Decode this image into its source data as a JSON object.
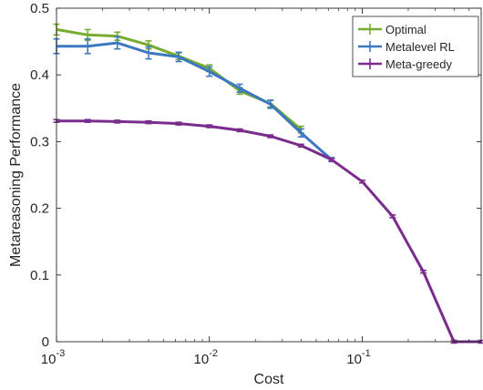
{
  "chart_data": {
    "type": "line",
    "xlabel": "Cost",
    "ylabel": "Metareasoning Performance",
    "xscale": "log",
    "xlim": [
      0.001,
      0.6
    ],
    "ylim": [
      0,
      0.5
    ],
    "x_ticks": [
      {
        "value": 0.001,
        "base": "10",
        "exp": "-3"
      },
      {
        "value": 0.01,
        "base": "10",
        "exp": "-2"
      },
      {
        "value": 0.1,
        "base": "10",
        "exp": "-1"
      }
    ],
    "y_ticks": [
      {
        "value": 0,
        "label": "0"
      },
      {
        "value": 0.1,
        "label": "0.1"
      },
      {
        "value": 0.2,
        "label": "0.2"
      },
      {
        "value": 0.3,
        "label": "0.3"
      },
      {
        "value": 0.4,
        "label": "0.4"
      },
      {
        "value": 0.5,
        "label": "0.5"
      }
    ],
    "legend_position": "top-right",
    "series": [
      {
        "name": "Optimal",
        "color": "#77ac30",
        "points": [
          {
            "x": 0.001,
            "y": 0.468,
            "err": 0.008
          },
          {
            "x": 0.0016,
            "y": 0.46,
            "err": 0.008
          },
          {
            "x": 0.0025,
            "y": 0.458,
            "err": 0.006
          },
          {
            "x": 0.004,
            "y": 0.445,
            "err": 0.006
          },
          {
            "x": 0.0063,
            "y": 0.428,
            "err": 0.005
          },
          {
            "x": 0.01,
            "y": 0.41,
            "err": 0.005
          },
          {
            "x": 0.0158,
            "y": 0.376,
            "err": 0.005
          },
          {
            "x": 0.0251,
            "y": 0.357,
            "err": 0.005
          },
          {
            "x": 0.0398,
            "y": 0.318,
            "err": 0.005
          }
        ]
      },
      {
        "name": "Metalevel RL",
        "color": "#3c78c0",
        "points": [
          {
            "x": 0.001,
            "y": 0.443,
            "err": 0.011
          },
          {
            "x": 0.0016,
            "y": 0.443,
            "err": 0.011
          },
          {
            "x": 0.0025,
            "y": 0.448,
            "err": 0.009
          },
          {
            "x": 0.004,
            "y": 0.433,
            "err": 0.009
          },
          {
            "x": 0.0063,
            "y": 0.427,
            "err": 0.007
          },
          {
            "x": 0.01,
            "y": 0.405,
            "err": 0.007
          },
          {
            "x": 0.0158,
            "y": 0.38,
            "err": 0.006
          },
          {
            "x": 0.0251,
            "y": 0.356,
            "err": 0.006
          },
          {
            "x": 0.0398,
            "y": 0.313,
            "err": 0.006
          },
          {
            "x": 0.0631,
            "y": 0.273,
            "err": 0.003
          }
        ]
      },
      {
        "name": "Meta-greedy",
        "color": "#7b2d8e",
        "points": [
          {
            "x": 0.001,
            "y": 0.331
          },
          {
            "x": 0.0016,
            "y": 0.331
          },
          {
            "x": 0.0025,
            "y": 0.33
          },
          {
            "x": 0.004,
            "y": 0.329
          },
          {
            "x": 0.0063,
            "y": 0.327
          },
          {
            "x": 0.01,
            "y": 0.323
          },
          {
            "x": 0.0158,
            "y": 0.317
          },
          {
            "x": 0.0251,
            "y": 0.308
          },
          {
            "x": 0.0398,
            "y": 0.294
          },
          {
            "x": 0.0631,
            "y": 0.273
          },
          {
            "x": 0.1,
            "y": 0.24
          },
          {
            "x": 0.158,
            "y": 0.188
          },
          {
            "x": 0.251,
            "y": 0.105
          },
          {
            "x": 0.398,
            "y": 0.0
          },
          {
            "x": 0.6,
            "y": 0.0
          }
        ]
      }
    ]
  }
}
